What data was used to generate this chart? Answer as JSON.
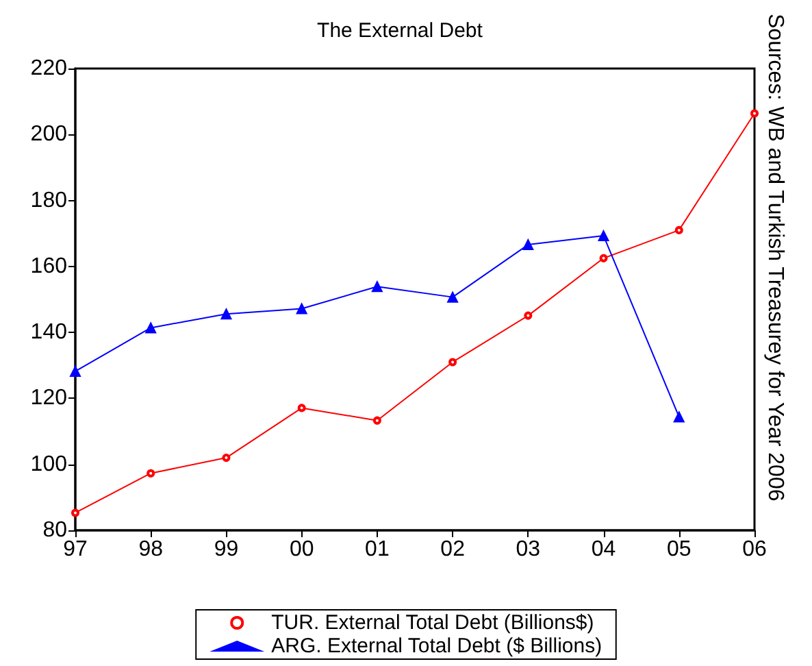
{
  "chart_data": {
    "type": "line",
    "title": "The External Debt",
    "categories": [
      "97",
      "98",
      "99",
      "00",
      "01",
      "02",
      "03",
      "04",
      "05",
      "06"
    ],
    "series": [
      {
        "name": "TUR. External Total Debt (Billions$)",
        "color": "#ff0000",
        "marker": "circle",
        "values": [
          85.3,
          97.3,
          102,
          117.1,
          113.3,
          131,
          145.1,
          162.5,
          171,
          206.4
        ]
      },
      {
        "name": "ARG. External Total Debt ($ Billions)",
        "color": "#0000ff",
        "marker": "triangle",
        "values": [
          128.2,
          141.4,
          145.6,
          147.2,
          153.9,
          150.7,
          166.6,
          169.3,
          114.4,
          null
        ]
      }
    ],
    "ylim": [
      80,
      220
    ],
    "yticks": [
      80,
      100,
      120,
      140,
      160,
      180,
      200,
      220
    ],
    "grid": false,
    "legend": "bottom",
    "line_style": "solid",
    "annotations": [
      "Sources: WB and Turkish Treasurey for Year 2006"
    ]
  }
}
